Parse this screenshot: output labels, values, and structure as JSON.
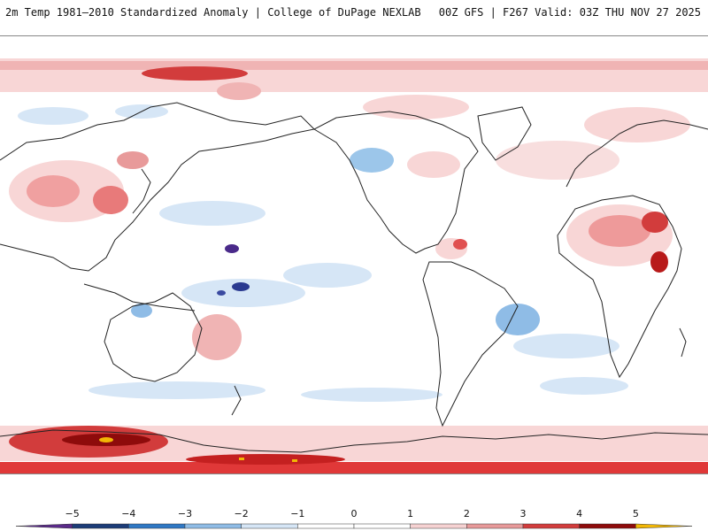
{
  "header": {
    "title_left": "2m Temp 1981–2010 Standardized Anomaly | College of DuPage NEXLAB",
    "title_right": "00Z GFS | F267 Valid: 03Z THU NOV 27 2025"
  },
  "map": {
    "projection": "equirectangular",
    "center": "Pacific-centered",
    "field": "2m temperature standardized anomaly"
  },
  "colorbar": {
    "labels": [
      "−5",
      "−4",
      "−3",
      "−2",
      "−1",
      "0",
      "1",
      "2",
      "3",
      "4",
      "5"
    ],
    "colors": [
      "#5a2a8a",
      "#1c3c78",
      "#2f78c4",
      "#8fbce6",
      "#d6e6f6",
      "#ffffff",
      "#ffffff",
      "#f6d2d2",
      "#e89a9a",
      "#d23c3c",
      "#8e0b0b",
      "#f2b705"
    ]
  }
}
